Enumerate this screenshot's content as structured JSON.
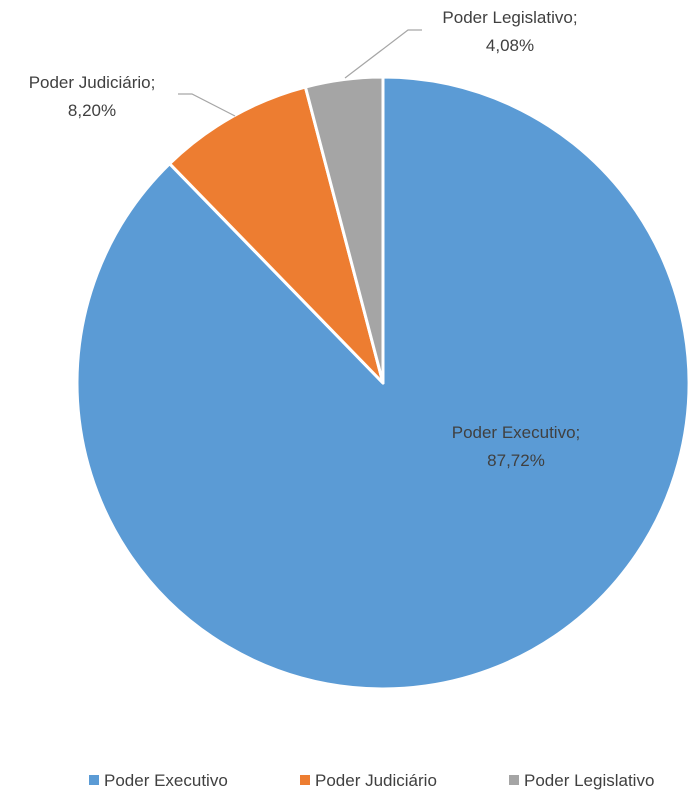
{
  "chart_data": {
    "type": "pie",
    "title": "",
    "slices": [
      {
        "name": "Poder Executivo",
        "value": 87.72,
        "label_name": "Poder Executivo;",
        "label_value": "87,72%",
        "color": "#5b9bd5"
      },
      {
        "name": "Poder Judiciário",
        "value": 8.2,
        "label_name": "Poder Judiciário;",
        "label_value": "8,20%",
        "color": "#ed7d31"
      },
      {
        "name": "Poder Legislativo",
        "value": 4.08,
        "label_name": "Poder Legislativo;",
        "label_value": "4,08%",
        "color": "#a5a5a5"
      }
    ],
    "legend": {
      "position": "bottom",
      "entries": [
        "Poder Executivo",
        "Poder Judiciário",
        "Poder Legislativo"
      ]
    },
    "start_angle": "12 o'clock",
    "direction": "counter-clockwise for minor slices",
    "colors": {
      "leader_line": "#a6a6a6",
      "text": "#404040",
      "slice_border": "#ffffff"
    }
  }
}
